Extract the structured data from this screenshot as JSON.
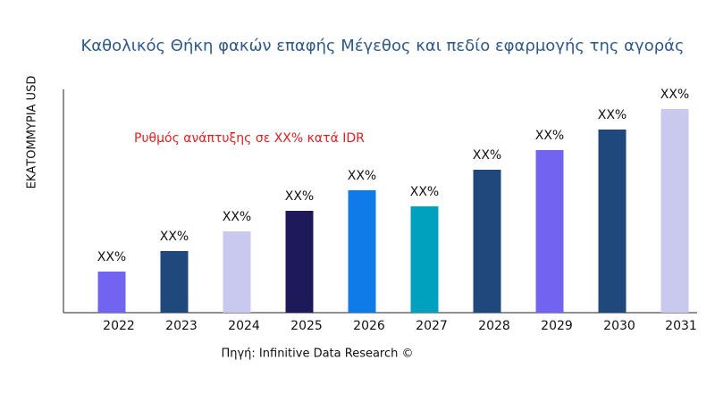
{
  "chart_data": {
    "type": "bar",
    "title": "Καθολικός Θήκη φακών επαφής Μέγεθος και πεδίο εφαρμογής της αγοράς",
    "y_label": "ΕΚΑΤΟΜΜΥΡΙΑ USD",
    "annotation": "Ρυθμός ανάπτυξης σε XX% κατά IDR",
    "source": "Πηγή: Infinitive Data Research ©",
    "categories": [
      "2022",
      "2023",
      "2024",
      "2025",
      "2026",
      "2027",
      "2028",
      "2029",
      "2030",
      "2031"
    ],
    "values": [
      46,
      69,
      91,
      114,
      137,
      119,
      160,
      182,
      205,
      228
    ],
    "value_labels": [
      "XX%",
      "XX%",
      "XX%",
      "XX%",
      "XX%",
      "XX%",
      "XX%",
      "XX%",
      "XX%",
      "XX%"
    ],
    "colors": [
      "#7064f0",
      "#1f497d",
      "#c9c9f0",
      "#1e1a5a",
      "#0f7be8",
      "#00a0bf",
      "#1f497d",
      "#7064f0",
      "#1f497d",
      "#c9c9f0"
    ],
    "ylim": [
      0,
      250
    ]
  }
}
